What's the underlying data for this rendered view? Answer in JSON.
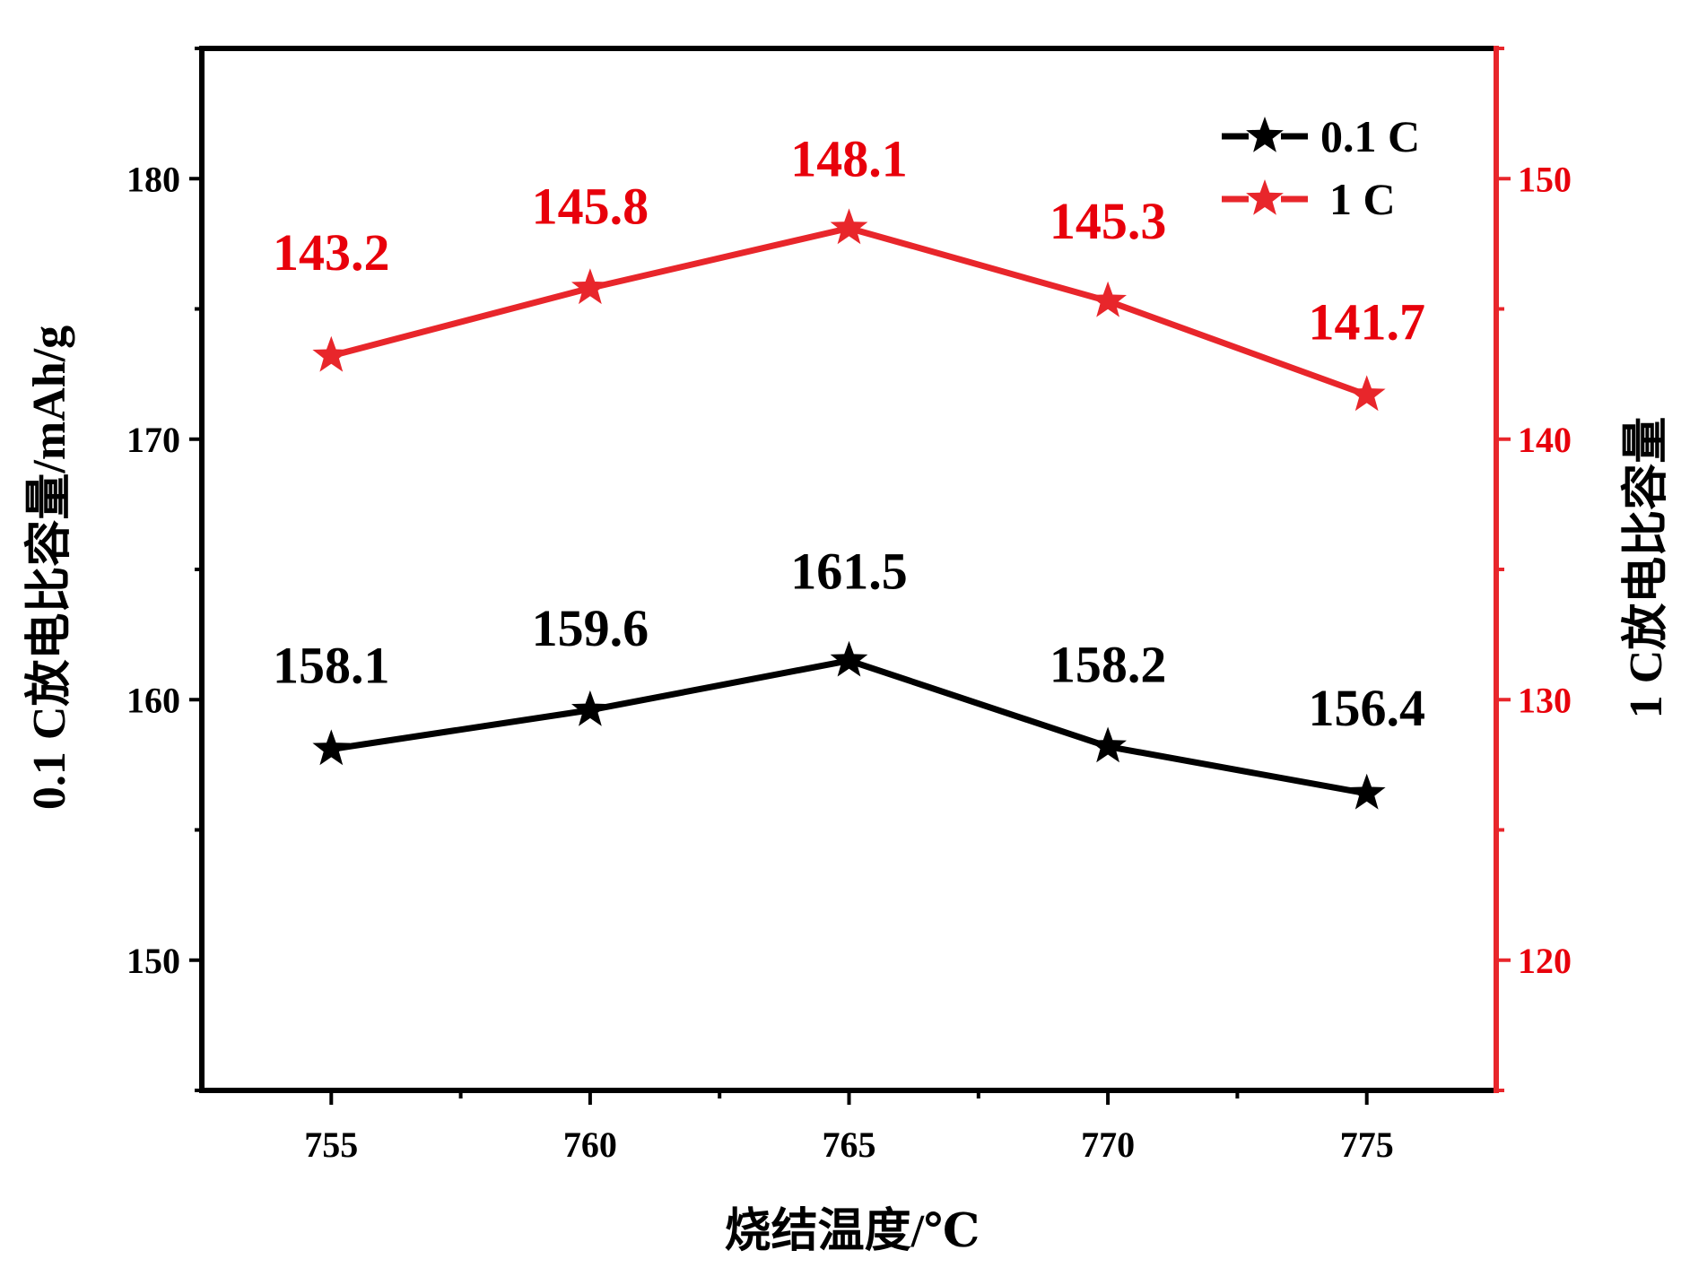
{
  "chart_data": {
    "type": "line",
    "x": [
      755,
      760,
      765,
      770,
      775
    ],
    "x_ticks": [
      "755",
      "760",
      "765",
      "770",
      "775"
    ],
    "xlim": [
      752.5,
      777.5
    ],
    "xlabel": "烧结温度/℃",
    "ylabel_left": "0.1 C放电比容量/mAh/g",
    "ylabel_right": "1 C放电比容量",
    "ylim_left": [
      145,
      185
    ],
    "ylim_right": [
      115,
      155
    ],
    "yticks_left": [
      "150",
      "160",
      "170",
      "180"
    ],
    "yticks_right": [
      "120",
      "130",
      "140",
      "150"
    ],
    "legend_position": "top-right",
    "grid": false,
    "series": [
      {
        "name": "0.1 C",
        "axis": "left",
        "color": "#000000",
        "marker": "star",
        "values": [
          158.1,
          159.6,
          161.5,
          158.2,
          156.4
        ],
        "labels": [
          "158.1",
          "159.6",
          "161.5",
          "158.2",
          "156.4"
        ]
      },
      {
        "name": "1 C",
        "axis": "right",
        "color": "#e8262b",
        "marker": "star",
        "values": [
          143.2,
          145.8,
          148.1,
          145.3,
          141.7
        ],
        "labels": [
          "143.2",
          "145.8",
          "148.1",
          "145.3",
          "141.7"
        ]
      }
    ]
  },
  "colors": {
    "left_axis": "#000000",
    "right_axis": "#e8262b",
    "red_text": "#e8000b"
  }
}
